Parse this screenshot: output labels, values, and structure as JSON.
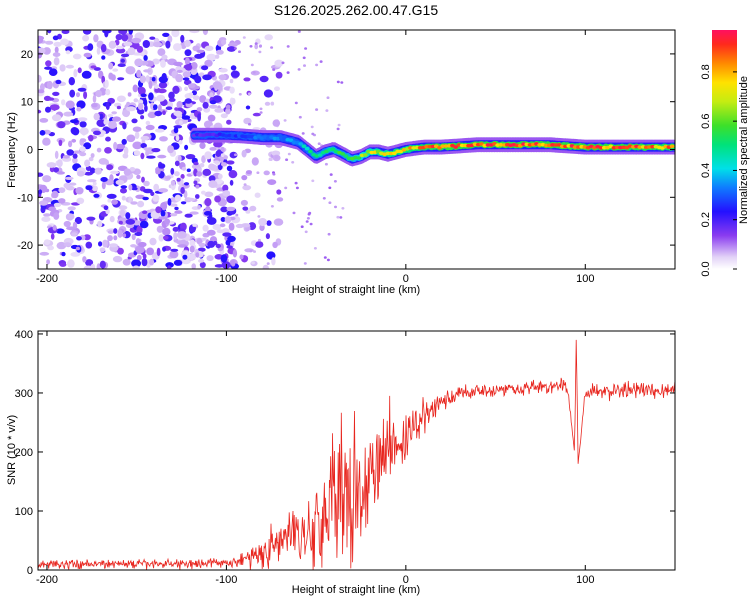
{
  "title": "S126.2025.262.00.47.G15",
  "colors": {
    "snr_line": "#e8261f",
    "spec_low": "#d9ccf5",
    "spec_mid": "#7a1ee8",
    "frame": "#000000"
  },
  "chart_data": [
    {
      "type": "heatmap",
      "title": "S126.2025.262.00.47.G15",
      "xlabel": "Height of straight line (km)",
      "ylabel": "Frequency (Hz)",
      "xlim": [
        -205,
        150
      ],
      "ylim": [
        -25,
        25
      ],
      "xticks": [
        -200,
        -100,
        0,
        100
      ],
      "yticks": [
        -20,
        -10,
        0,
        10,
        20
      ],
      "colorbar": {
        "label": "Normalized spectral amplitude",
        "range": [
          0.0,
          0.97
        ],
        "ticks": [
          0.0,
          0.2,
          0.4,
          0.6,
          0.8
        ],
        "tick_labels": [
          "0.0",
          "0.2",
          "0.4",
          "0.6",
          "0.8"
        ]
      },
      "noise_region": {
        "x_range": [
          -205,
          -95
        ],
        "y_range": [
          -25,
          25
        ],
        "amplitude": 0.3
      },
      "signal_track": {
        "x": [
          -118,
          -110,
          -100,
          -90,
          -80,
          -70,
          -60,
          -55,
          -50,
          -45,
          -40,
          -35,
          -30,
          -25,
          -20,
          -15,
          -10,
          -5,
          0,
          10,
          20,
          40,
          60,
          80,
          100,
          120,
          150
        ],
        "frequency": [
          3.0,
          3.0,
          3.0,
          2.8,
          2.5,
          2.5,
          1.5,
          0.0,
          -1.5,
          -0.5,
          0.0,
          -1.0,
          -2.0,
          -1.5,
          -0.5,
          -0.5,
          -1.0,
          -0.5,
          0.0,
          0.5,
          0.5,
          1.0,
          1.0,
          1.0,
          0.5,
          0.5,
          0.5
        ],
        "amplitude": [
          0.2,
          0.2,
          0.25,
          0.3,
          0.35,
          0.35,
          0.4,
          0.5,
          0.55,
          0.55,
          0.6,
          0.55,
          0.6,
          0.65,
          0.7,
          0.75,
          0.75,
          0.8,
          0.8,
          0.85,
          0.9,
          0.9,
          0.9,
          0.9,
          0.9,
          0.9,
          0.85
        ]
      }
    },
    {
      "type": "line",
      "xlabel": "Height of straight line (km)",
      "ylabel": "SNR (10 * v/v)",
      "xlim": [
        -205,
        150
      ],
      "ylim": [
        0,
        405
      ],
      "xticks": [
        -200,
        -100,
        0,
        100
      ],
      "yticks": [
        0,
        100,
        200,
        300,
        400
      ],
      "series": [
        {
          "name": "SNR",
          "x": [
            -205,
            -150,
            -100,
            -90,
            -80,
            -70,
            -65,
            -60,
            -55,
            -50,
            -45,
            -40,
            -35,
            -30,
            -25,
            -20,
            -15,
            -10,
            -5,
            0,
            5,
            10,
            15,
            20,
            25,
            30,
            40,
            50,
            60,
            70,
            80,
            90,
            94,
            95,
            96,
            100,
            120,
            150
          ],
          "y": [
            10,
            10,
            12,
            18,
            30,
            45,
            60,
            70,
            60,
            80,
            90,
            100,
            130,
            150,
            140,
            160,
            175,
            190,
            200,
            220,
            240,
            260,
            270,
            285,
            290,
            300,
            305,
            305,
            308,
            310,
            310,
            312,
            200,
            400,
            180,
            300,
            305,
            305
          ],
          "noise": [
            8,
            8,
            8,
            15,
            25,
            35,
            40,
            45,
            50,
            70,
            80,
            90,
            110,
            110,
            80,
            80,
            70,
            60,
            55,
            45,
            35,
            30,
            25,
            20,
            15,
            15,
            12,
            12,
            12,
            12,
            12,
            12,
            0,
            0,
            0,
            12,
            14,
            14
          ]
        }
      ]
    }
  ]
}
